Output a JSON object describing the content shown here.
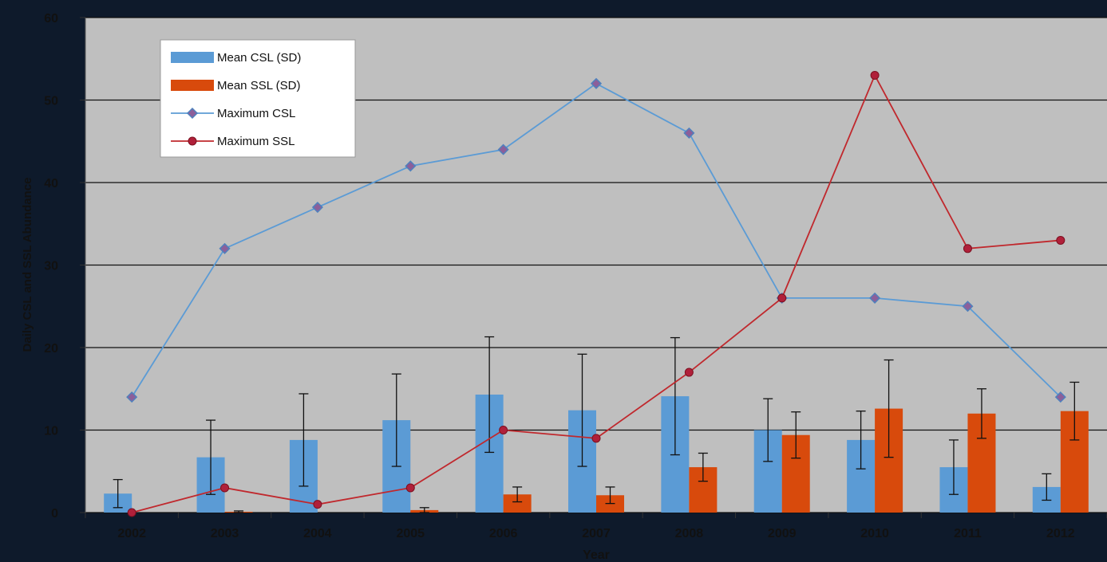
{
  "chart_data": {
    "type": "bar",
    "categories": [
      "2002",
      "2003",
      "2004",
      "2005",
      "2006",
      "2007",
      "2008",
      "2009",
      "2010",
      "2011",
      "2012"
    ],
    "xlabel": "Year",
    "ylabel": "Daily CSL and SSL Abundance",
    "ylim": [
      0,
      60
    ],
    "yticks": [
      0,
      10,
      20,
      30,
      40,
      50,
      60
    ],
    "grid": true,
    "legend_placement": "top-left",
    "bar_series": [
      {
        "name": "Mean CSL (SD)",
        "color": "#5b9bd5",
        "values": [
          2.3,
          6.7,
          8.8,
          11.2,
          14.3,
          12.4,
          14.1,
          10.0,
          8.8,
          5.5,
          3.1
        ],
        "sd": [
          1.7,
          4.5,
          5.6,
          5.6,
          7.0,
          6.8,
          7.1,
          3.8,
          3.5,
          3.3,
          1.6
        ]
      },
      {
        "name": "Mean SSL (SD)",
        "color": "#d84a0c",
        "values": [
          0,
          0.1,
          0,
          0.3,
          2.2,
          2.1,
          5.5,
          9.4,
          12.6,
          12.0,
          12.3
        ],
        "sd": [
          0,
          0.1,
          0,
          0.3,
          0.9,
          1.0,
          1.7,
          2.8,
          5.9,
          3.0,
          3.5
        ]
      }
    ],
    "line_series": [
      {
        "name": "Maximum CSL",
        "color": "#5b9bd5",
        "marker": "diamond",
        "values": [
          14,
          32,
          37,
          42,
          44,
          52,
          46,
          26,
          26,
          25,
          14
        ]
      },
      {
        "name": "Maximum SSL",
        "color": "#c0282d",
        "marker": "circle",
        "values": [
          0,
          3,
          1,
          3,
          10,
          9,
          17,
          26,
          53,
          32,
          33
        ]
      }
    ]
  }
}
